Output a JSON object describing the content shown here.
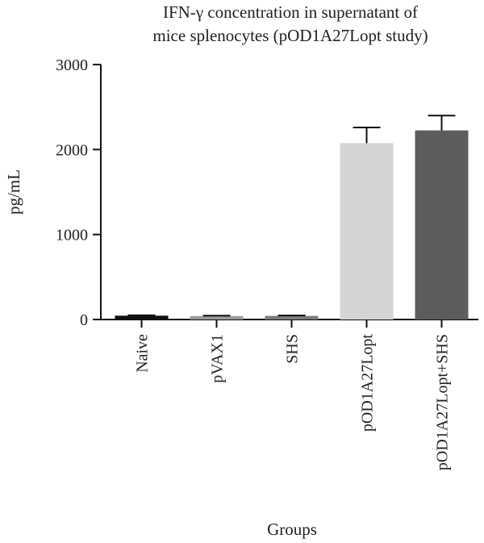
{
  "chart_data": {
    "type": "bar",
    "title_line1": "IFN-γ concentration in supernatant of",
    "title_line2": "mice splenocytes (pOD1A27Lopt study)",
    "xlabel": "Groups",
    "ylabel": "pg/mL",
    "ylim": [
      0,
      3000
    ],
    "yticks": [
      "0",
      "1000",
      "2000",
      "3000"
    ],
    "ytick_values": [
      0,
      1000,
      2000,
      3000
    ],
    "categories": [
      "Naive",
      "pVAX1",
      "SHS",
      "pOD1A27Lopt",
      "pOD1A27Lopt+SHS"
    ],
    "values": [
      45,
      40,
      42,
      2075,
      2225
    ],
    "errors": [
      5,
      5,
      5,
      185,
      175
    ],
    "colors": [
      "#111111",
      "#9a9a9a",
      "#7a7a7a",
      "#d4d4d4",
      "#5c5c5c"
    ]
  }
}
